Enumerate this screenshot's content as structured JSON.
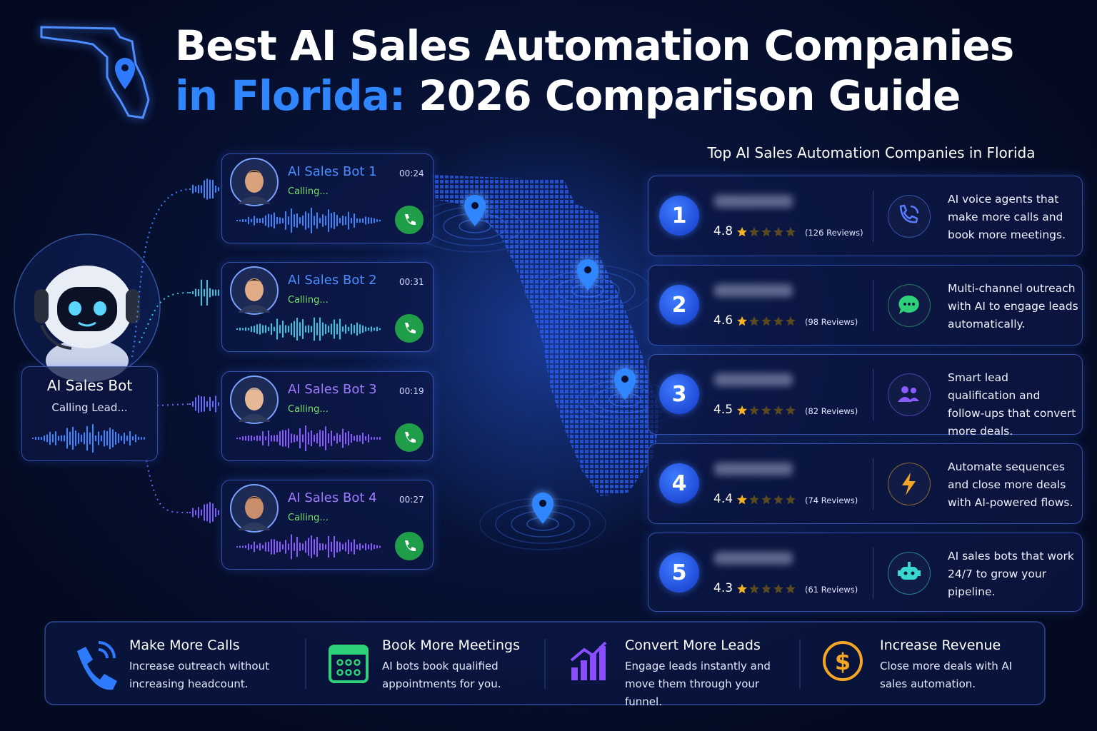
{
  "header": {
    "title_line1": "Best AI Sales Automation Companies",
    "title_highlight": "in Florida:",
    "title_rest": "2026 Comparison Guide"
  },
  "bot": {
    "name": "AI Sales Bot",
    "status": "Calling Lead..."
  },
  "calls": [
    {
      "name": "AI Sales Bot 1",
      "status": "Calling...",
      "time": "00:24"
    },
    {
      "name": "AI Sales Bot 2",
      "status": "Calling...",
      "time": "00:31"
    },
    {
      "name": "AI Sales Bot 3",
      "status": "Calling...",
      "time": "00:19"
    },
    {
      "name": "AI Sales Bot 4",
      "status": "Calling...",
      "time": "00:27"
    }
  ],
  "ranking": {
    "title": "Top AI Sales Automation Companies in Florida",
    "items": [
      {
        "rank": 1,
        "rating": 4.8,
        "reviews": "(126 Reviews)",
        "description": "AI voice agents that make more calls and book more meetings."
      },
      {
        "rank": 2,
        "rating": 4.6,
        "reviews": "(98 Reviews)",
        "description": "Multi-channel outreach with AI to engage leads automatically."
      },
      {
        "rank": 3,
        "rating": 4.5,
        "reviews": "(82 Reviews)",
        "description": "Smart lead qualification and follow-ups that convert more deals."
      },
      {
        "rank": 4,
        "rating": 4.4,
        "reviews": "(74 Reviews)",
        "description": "Automate sequences and close more deals with AI-powered flows."
      },
      {
        "rank": 5,
        "rating": 4.3,
        "reviews": "(61 Reviews)",
        "description": "AI sales bots that work 24/7 to grow your pipeline."
      }
    ]
  },
  "benefits": [
    {
      "title": "Make More Calls",
      "description": "Increase outreach without increasing headcount."
    },
    {
      "title": "Book More Meetings",
      "description": "AI bots book qualified appointments for you."
    },
    {
      "title": "Convert More Leads",
      "description": "Engage leads instantly and move them through your funnel."
    },
    {
      "title": "Increase Revenue",
      "description": "Close more deals with AI sales automation."
    }
  ]
}
